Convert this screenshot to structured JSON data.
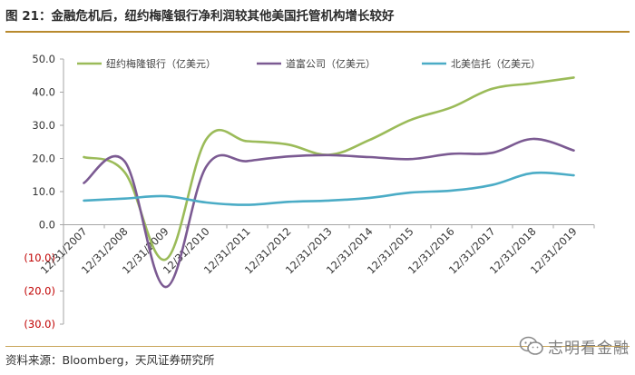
{
  "header": {
    "figure_title": "图 21：金融危机后，纽约梅隆银行净利润较其他美国托管机构增长较好"
  },
  "footer": {
    "source_text": "资料来源：Bloomberg，天风证券研究所",
    "watermark_text": "志明看金融",
    "watermark_icon": "wechat-icon"
  },
  "colors": {
    "bny": "#9bbb59",
    "state_street": "#7b5a92",
    "northern_trust": "#4bacc6",
    "negative_tick": "#c00000",
    "rule": "#b88a2e"
  },
  "chart_data": {
    "type": "line",
    "title": "",
    "xlabel": "",
    "ylabel": "",
    "ylim": [
      -30,
      50
    ],
    "yticks": [
      50,
      40,
      30,
      20,
      10,
      0,
      -10,
      -20,
      -30
    ],
    "ytick_labels": [
      "50.0",
      "40.0",
      "30.0",
      "20.0",
      "10.0",
      "0.0",
      "(10.0)",
      "(20.0)",
      "(30.0)"
    ],
    "categories": [
      "12/31/2007",
      "12/31/2008",
      "12/31/2009",
      "12/31/2010",
      "12/31/2011",
      "12/31/2012",
      "12/31/2013",
      "12/31/2014",
      "12/31/2015",
      "12/31/2016",
      "12/31/2017",
      "12/31/2018",
      "12/31/2019"
    ],
    "grid": false,
    "legend_position": "top",
    "smooth": true,
    "series": [
      {
        "name": "纽约梅隆银行（亿美元）",
        "color_key": "bny",
        "values": [
          20.4,
          15.8,
          -10.5,
          25.8,
          25.2,
          24.2,
          21.1,
          25.6,
          31.6,
          35.4,
          41.0,
          42.7,
          44.4
        ]
      },
      {
        "name": "道富公司（亿美元）",
        "color_key": "state_street",
        "values": [
          12.6,
          19.1,
          -18.8,
          17.6,
          19.2,
          20.6,
          21.0,
          20.4,
          19.8,
          21.4,
          21.7,
          25.9,
          22.4
        ]
      },
      {
        "name": "北美信托（亿美元）",
        "color_key": "northern_trust",
        "values": [
          7.3,
          7.9,
          8.6,
          6.7,
          6.0,
          6.9,
          7.3,
          8.1,
          9.7,
          10.3,
          12.0,
          15.6,
          14.9
        ]
      }
    ]
  }
}
